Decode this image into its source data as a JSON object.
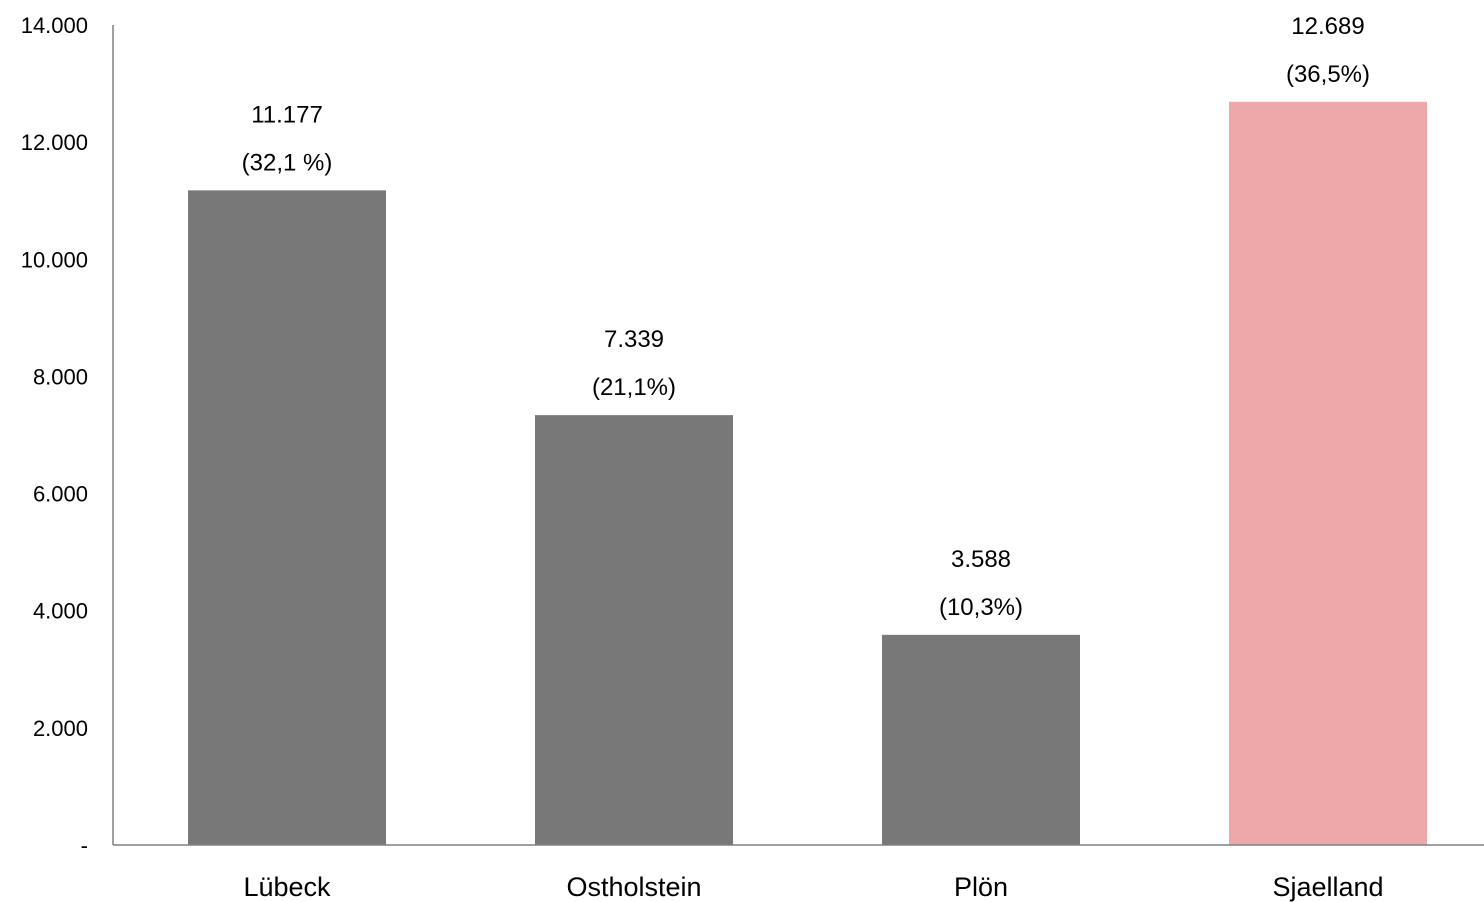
{
  "chart_data": {
    "type": "bar",
    "title": "",
    "xlabel": "",
    "ylabel": "",
    "categories": [
      "Lübeck",
      "Ostholstein",
      "Plön",
      "Sjaelland"
    ],
    "values": [
      11177,
      7339,
      3588,
      12689
    ],
    "value_labels": [
      "11.177",
      "7.339",
      "3.588",
      "12.689"
    ],
    "share_labels": [
      "(32,1 %)",
      "(21,1%)",
      "(10,3%)",
      "(36,5%)"
    ],
    "colors": [
      "#787878",
      "#787878",
      "#787878",
      "#eea8a9"
    ],
    "ylim": [
      0,
      14000
    ],
    "yticks": [
      0,
      2000,
      4000,
      6000,
      8000,
      10000,
      12000,
      14000
    ],
    "ytick_labels": [
      "-",
      "2.000",
      "4.000",
      "6.000",
      "8.000",
      "10.000",
      "12.000",
      "14.000"
    ],
    "grid": false,
    "legend": "none"
  }
}
